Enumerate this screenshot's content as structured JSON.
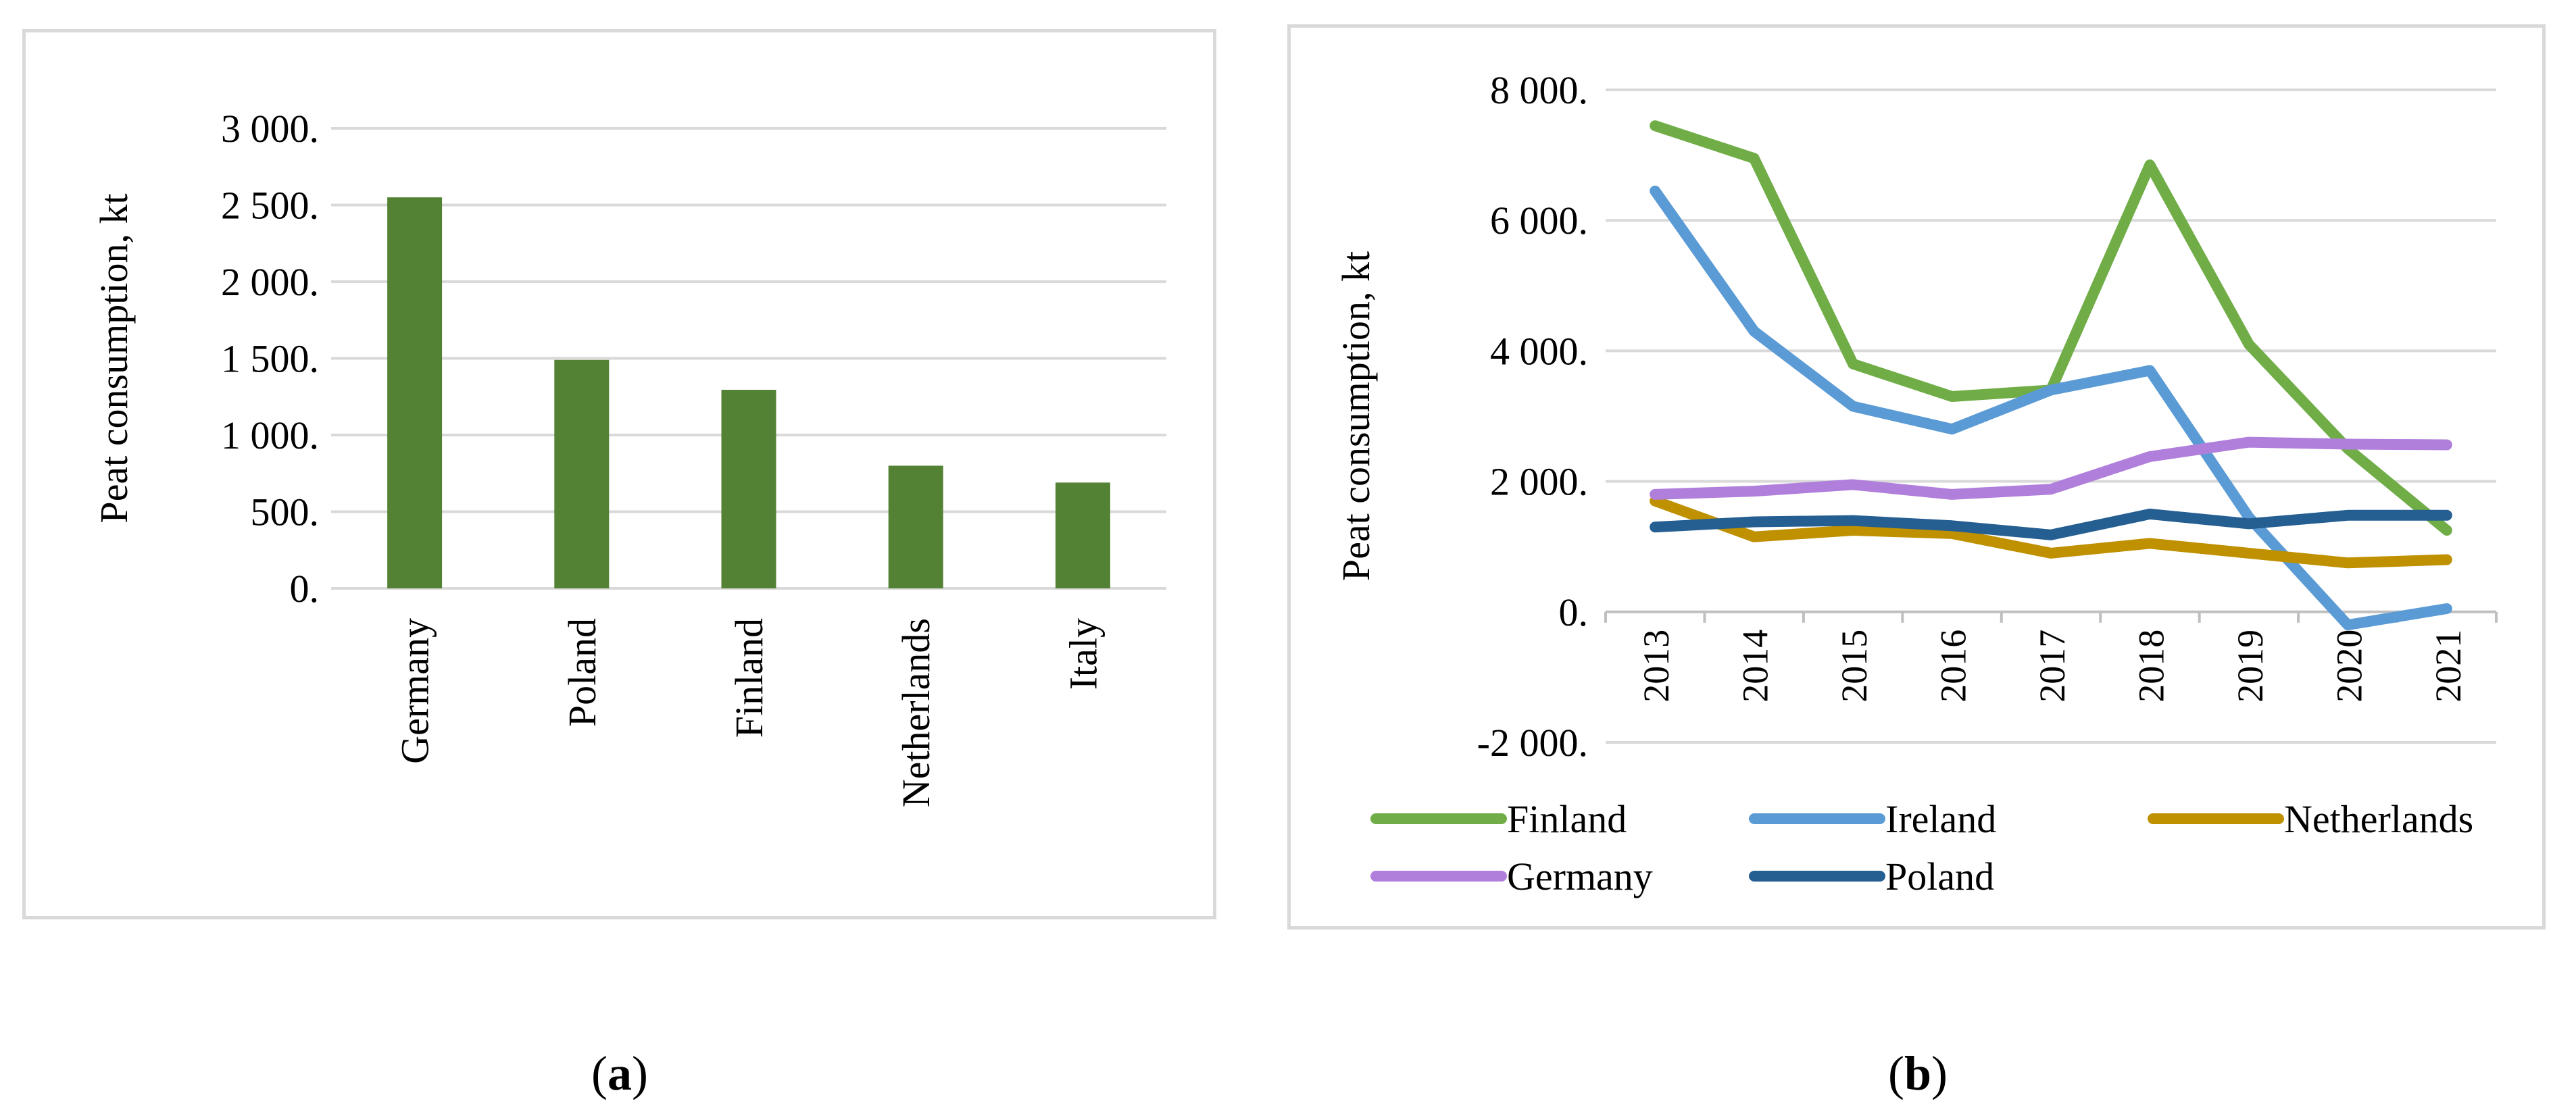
{
  "chart_data": [
    {
      "type": "bar",
      "panel": "a",
      "title": "",
      "xlabel": "",
      "ylabel": "Peat consumption, kt",
      "ylim": [
        0,
        3000
      ],
      "yticks": [
        0,
        500,
        1000,
        1500,
        2000,
        2500,
        3000
      ],
      "ytick_labels": [
        "0.",
        "500.",
        "1 000.",
        "1 500.",
        "2 000.",
        "2 500.",
        "3 000."
      ],
      "grid": true,
      "categories": [
        "Germany",
        "Poland",
        "Finland",
        "Netherlands",
        "Italy"
      ],
      "values": [
        2550,
        1490,
        1295,
        800,
        690
      ],
      "color": "#548235"
    },
    {
      "type": "line",
      "panel": "b",
      "title": "",
      "xlabel": "",
      "ylabel": "Peat consumption, kt",
      "ylim": [
        -2000,
        8000
      ],
      "yticks": [
        -2000,
        0,
        2000,
        4000,
        6000,
        8000
      ],
      "ytick_labels": [
        "-2 000.",
        "0.",
        "2 000.",
        "4 000.",
        "6 000.",
        "8 000."
      ],
      "grid": true,
      "legend_position": "bottom",
      "x": [
        "2013",
        "2014",
        "2015",
        "2016",
        "2017",
        "2018",
        "2019",
        "2020",
        "2021"
      ],
      "series": [
        {
          "name": "Finland",
          "color": "#70ad47",
          "values": [
            7450,
            6950,
            3800,
            3300,
            3400,
            6850,
            4100,
            2500,
            1250
          ]
        },
        {
          "name": "Ireland",
          "color": "#5b9bd5",
          "values": [
            6450,
            4300,
            3150,
            2800,
            3400,
            3700,
            1450,
            -200,
            50
          ]
        },
        {
          "name": "Netherlands",
          "color": "#bf9000",
          "values": [
            1700,
            1150,
            1250,
            1200,
            900,
            1050,
            900,
            750,
            800
          ]
        },
        {
          "name": "Germany",
          "color": "#b07fdc",
          "values": [
            1800,
            1850,
            1950,
            1800,
            1880,
            2380,
            2600,
            2570,
            2560
          ]
        },
        {
          "name": "Poland",
          "color": "#255e91",
          "values": [
            1300,
            1380,
            1400,
            1320,
            1180,
            1500,
            1350,
            1480,
            1480
          ]
        }
      ]
    }
  ],
  "captions": {
    "a": {
      "open": "(",
      "letter": "a",
      "close": ")"
    },
    "b": {
      "open": "(",
      "letter": "b",
      "close": ")"
    }
  }
}
